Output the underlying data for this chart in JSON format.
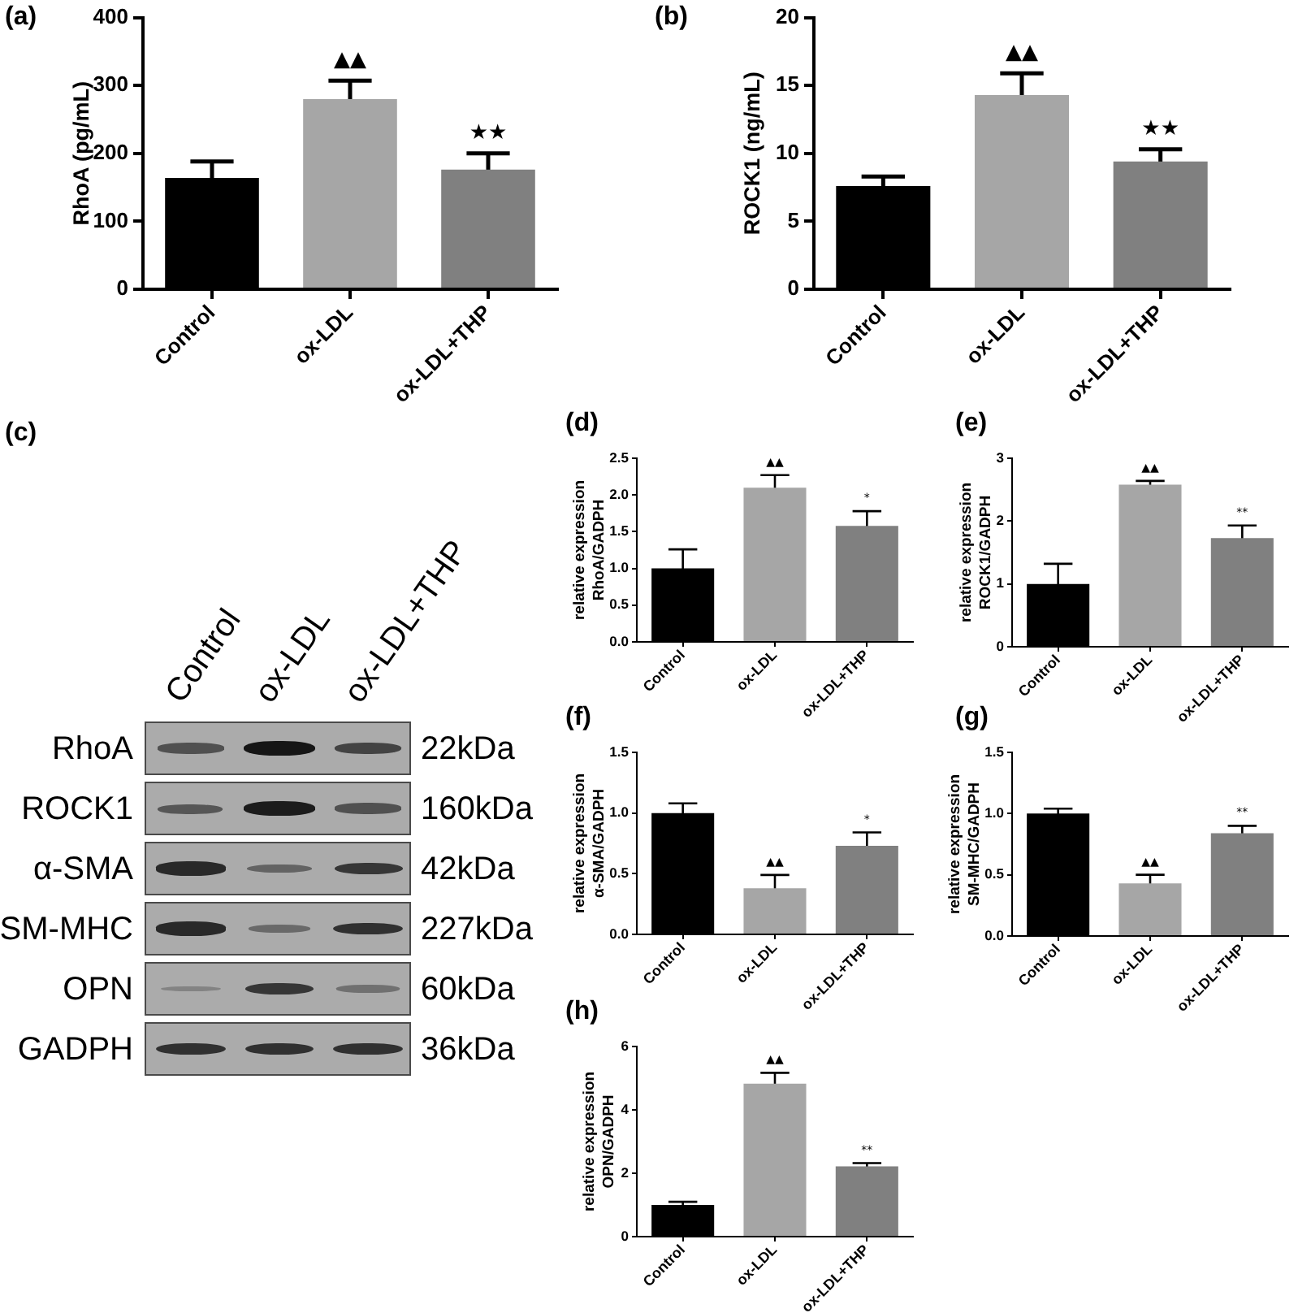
{
  "chart_data": [
    {
      "type": "bar",
      "title": "(a)",
      "ylabel": "RhoA (pg/mL)",
      "categories": [
        "Control",
        "ox-LDL",
        "ox-LDL+THP"
      ],
      "values": [
        164,
        280,
        176
      ],
      "errors": [
        24,
        27,
        24
      ],
      "colors": [
        "#000000",
        "#a6a6a6",
        "#808080"
      ],
      "ylim": [
        0,
        400
      ],
      "yticks": [
        0,
        100,
        200,
        300,
        400
      ],
      "annotations": [
        "▲▲",
        "★★"
      ]
    },
    {
      "type": "bar",
      "title": "(b)",
      "ylabel": "ROCK1 (ng/mL)",
      "categories": [
        "Control",
        "ox-LDL",
        "ox-LDL+THP"
      ],
      "values": [
        7.6,
        14.3,
        9.4
      ],
      "errors": [
        0.7,
        1.6,
        0.9
      ],
      "colors": [
        "#000000",
        "#a6a6a6",
        "#808080"
      ],
      "ylim": [
        0,
        20
      ],
      "yticks": [
        0,
        5,
        10,
        15,
        20
      ],
      "annotations": [
        "▲▲",
        "★★"
      ]
    },
    {
      "type": "other",
      "title": "(c)",
      "categories": [
        "Control",
        "ox-LDL",
        "ox-LDL+THP"
      ],
      "y_categories": [
        "RhoA",
        "ROCK1",
        "α-SMA",
        "SM-MHC",
        "OPN",
        "GADPH"
      ],
      "y2_categories": [
        "22kDa",
        "160kDa",
        "42kDa",
        "227kDa",
        "60kDa",
        "36kDa"
      ]
    },
    {
      "type": "bar",
      "title": "(d)",
      "ylabel": "relative expression\nRhoA/GADPH",
      "categories": [
        "Control",
        "ox-LDL",
        "ox-LDL+THP"
      ],
      "values": [
        1.0,
        2.1,
        1.58
      ],
      "errors": [
        0.26,
        0.17,
        0.2
      ],
      "colors": [
        "#000000",
        "#a6a6a6",
        "#808080"
      ],
      "ylim": [
        0,
        2.5
      ],
      "yticks": [
        {
          "value": 0,
          "label": "0.0"
        },
        0.5,
        {
          "value": 1,
          "label": "1.0"
        },
        1.5,
        {
          "value": 2,
          "label": "2.0"
        },
        2.5
      ],
      "annotations": [
        "▲▲",
        "*"
      ]
    },
    {
      "type": "bar",
      "title": "(e)",
      "ylabel": "relative expression\nROCK1/GADPH",
      "categories": [
        "Control",
        "ox-LDL",
        "ox-LDL+THP"
      ],
      "values": [
        1.0,
        2.58,
        1.73
      ],
      "errors": [
        0.32,
        0.06,
        0.2
      ],
      "colors": [
        "#000000",
        "#a6a6a6",
        "#808080"
      ],
      "ylim": [
        0,
        3
      ],
      "yticks": [
        0,
        1,
        2,
        3
      ],
      "annotations": [
        "▲▲",
        "**"
      ]
    },
    {
      "type": "bar",
      "title": "(f)",
      "ylabel": "relative expression\nα-SMA/GADPH",
      "categories": [
        "Control",
        "ox-LDL",
        "ox-LDL+THP"
      ],
      "values": [
        1.0,
        0.38,
        0.73
      ],
      "errors": [
        0.08,
        0.11,
        0.11
      ],
      "colors": [
        "#000000",
        "#a6a6a6",
        "#808080"
      ],
      "ylim": [
        0,
        1.5
      ],
      "yticks": [
        {
          "value": 0,
          "label": "0.0"
        },
        0.5,
        {
          "value": 1,
          "label": "1.0"
        },
        1.5
      ],
      "annotations": [
        "▲▲",
        "*"
      ]
    },
    {
      "type": "bar",
      "title": "(g)",
      "ylabel": "relative expression\nSM-MHC/GADPH",
      "categories": [
        "Control",
        "ox-LDL",
        "ox-LDL+THP"
      ],
      "values": [
        1.0,
        0.43,
        0.84
      ],
      "errors": [
        0.04,
        0.07,
        0.06
      ],
      "colors": [
        "#000000",
        "#a6a6a6",
        "#808080"
      ],
      "ylim": [
        0,
        1.5
      ],
      "yticks": [
        {
          "value": 0,
          "label": "0.0"
        },
        0.5,
        {
          "value": 1,
          "label": "1.0"
        },
        1.5
      ],
      "annotations": [
        "▲▲",
        "**"
      ]
    },
    {
      "type": "bar",
      "title": "(h)",
      "ylabel": "relative expression\nOPN/GADPH",
      "categories": [
        "Control",
        "ox-LDL",
        "ox-LDL+THP"
      ],
      "values": [
        1.0,
        4.83,
        2.22
      ],
      "errors": [
        0.1,
        0.34,
        0.1
      ],
      "colors": [
        "#000000",
        "#a6a6a6",
        "#808080"
      ],
      "ylim": [
        0,
        6
      ],
      "yticks": [
        0,
        2,
        4,
        6
      ],
      "annotations": [
        "▲▲",
        "**"
      ]
    }
  ]
}
